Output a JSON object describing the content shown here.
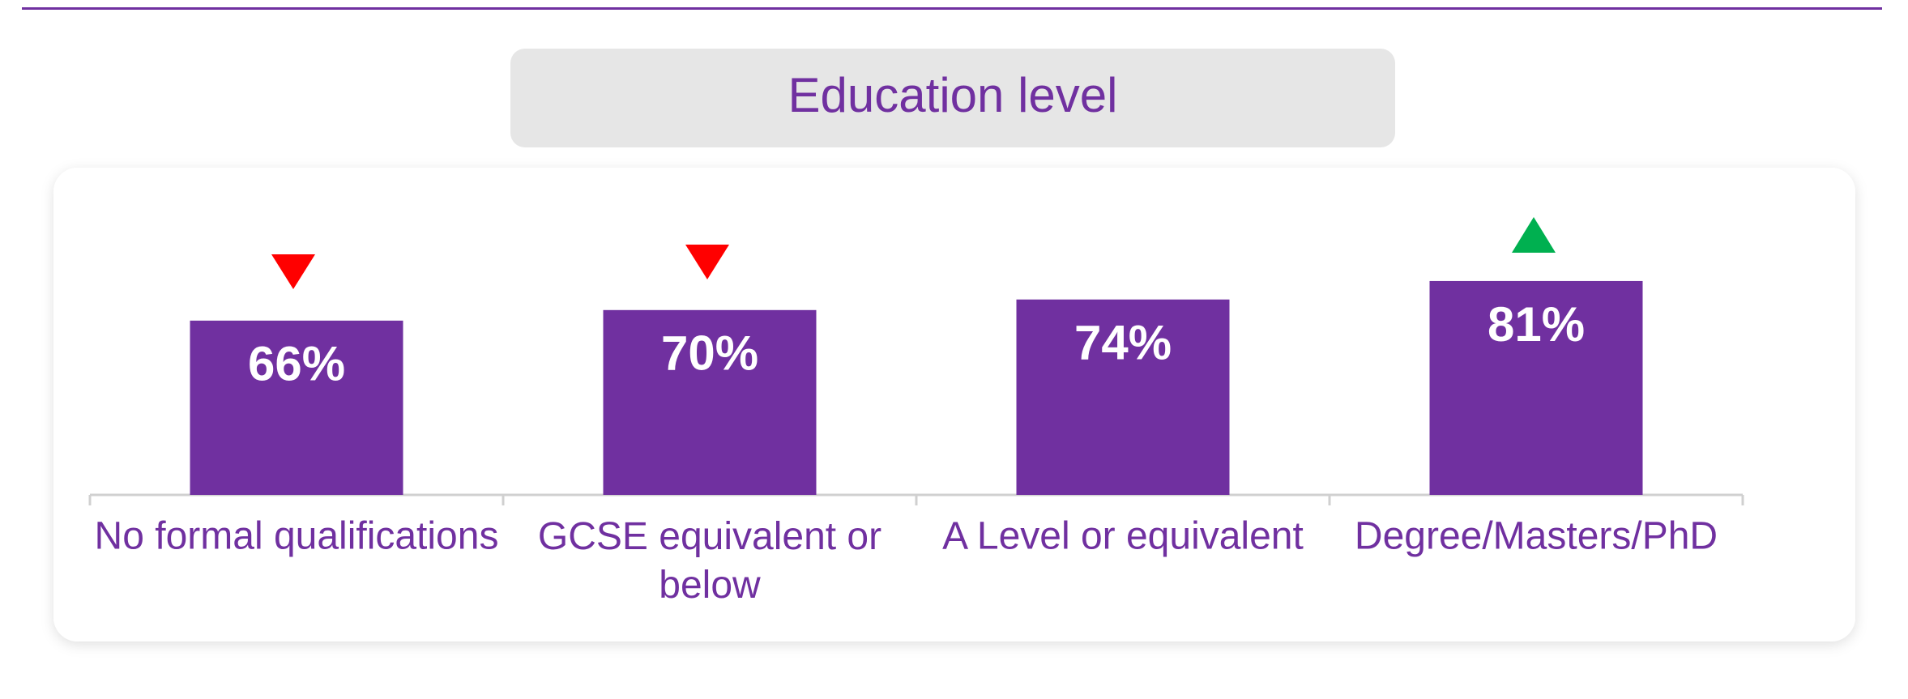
{
  "chart_data": {
    "type": "bar",
    "title": "Education level",
    "categories": [
      "No formal qualifications",
      "GCSE equivalent or below",
      "A Level or equivalent",
      "Degree/Masters/PhD"
    ],
    "values": [
      66,
      70,
      74,
      81
    ],
    "value_labels": [
      "66%",
      "70%",
      "74%",
      "81%"
    ],
    "color": "#7030a0",
    "ylim": [
      0,
      100
    ]
  }
}
